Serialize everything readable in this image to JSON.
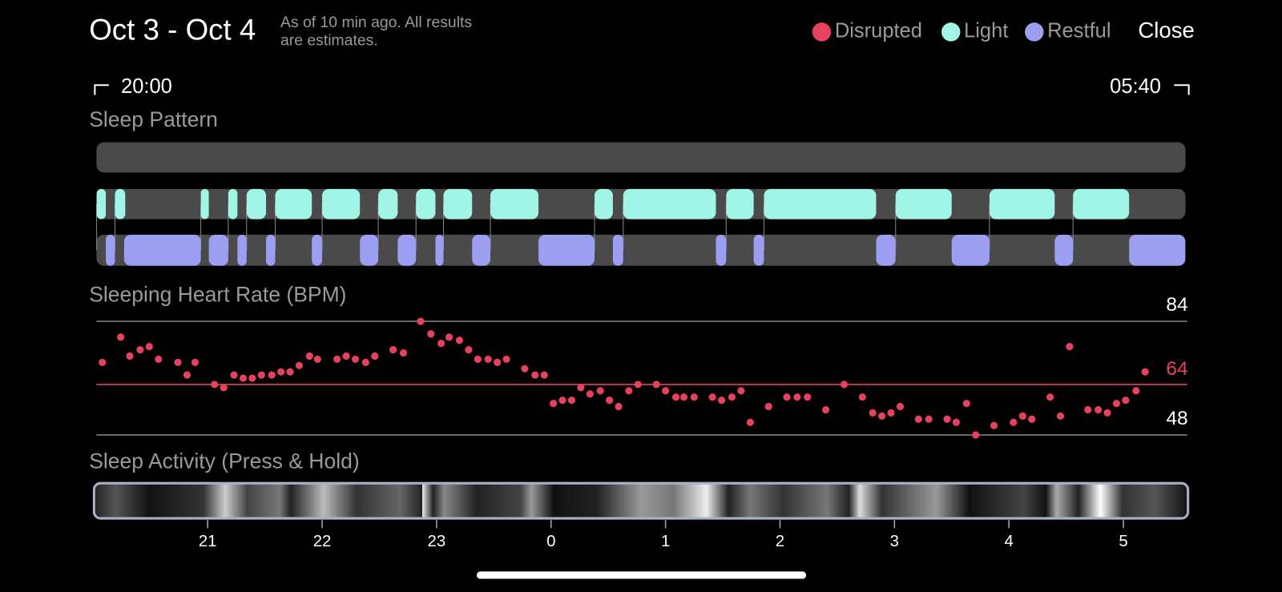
{
  "header": {
    "title": "Oct 3 - Oct 4",
    "note": [
      "As of 10 min ago. All results",
      "are estimates."
    ],
    "close": "Close"
  },
  "legend": [
    {
      "name": "Disrupted",
      "color": "#e8405f"
    },
    {
      "name": "Light",
      "color": "#a0f5e7"
    },
    {
      "name": "Restful",
      "color": "#9c9ef2"
    }
  ],
  "range": {
    "start": "20:00",
    "end": "05:40"
  },
  "xlim": [
    20,
    29.6
  ],
  "sleep_pattern": {
    "title": "Sleep Pattern",
    "light": [
      [
        20.03,
        20.11
      ],
      [
        20.19,
        20.28
      ],
      [
        20.94,
        21.01
      ],
      [
        21.18,
        21.26
      ],
      [
        21.34,
        21.51
      ],
      [
        21.59,
        21.91
      ],
      [
        22.0,
        22.33
      ],
      [
        22.49,
        22.66
      ],
      [
        22.82,
        22.99
      ],
      [
        23.06,
        23.31
      ],
      [
        23.47,
        23.89
      ],
      [
        24.38,
        24.54
      ],
      [
        24.63,
        25.44
      ],
      [
        25.53,
        25.77
      ],
      [
        25.86,
        26.84
      ],
      [
        27.01,
        27.5
      ],
      [
        27.83,
        28.4
      ],
      [
        28.56,
        29.05
      ]
    ],
    "restful": [
      [
        20.11,
        20.19
      ],
      [
        20.27,
        20.94
      ],
      [
        21.01,
        21.18
      ],
      [
        21.26,
        21.34
      ],
      [
        21.51,
        21.59
      ],
      [
        21.91,
        22.0
      ],
      [
        22.33,
        22.49
      ],
      [
        22.66,
        22.82
      ],
      [
        22.99,
        23.06
      ],
      [
        23.31,
        23.47
      ],
      [
        23.89,
        24.38
      ],
      [
        24.54,
        24.63
      ],
      [
        25.44,
        25.53
      ],
      [
        25.77,
        25.86
      ],
      [
        26.84,
        27.01
      ],
      [
        27.5,
        27.83
      ],
      [
        28.4,
        28.56
      ],
      [
        29.05,
        29.54
      ]
    ]
  },
  "heart_rate": {
    "title": "Sleeping Heart Rate (BPM)",
    "ylim": [
      48,
      84
    ],
    "yticks": [
      48,
      84
    ],
    "average": 64,
    "average_color": "#e8405f",
    "color": "#e8405f",
    "x": [
      20.08,
      20.24,
      20.32,
      20.41,
      20.49,
      20.57,
      20.74,
      20.82,
      20.89,
      21.06,
      21.14,
      21.23,
      21.31,
      21.39,
      21.47,
      21.56,
      21.64,
      21.72,
      21.8,
      21.89,
      21.96,
      22.13,
      22.21,
      22.29,
      22.38,
      22.46,
      22.62,
      22.71,
      22.86,
      22.95,
      23.04,
      23.11,
      23.2,
      23.28,
      23.36,
      23.45,
      23.53,
      23.61,
      23.77,
      23.86,
      23.94,
      24.02,
      24.1,
      24.18,
      24.26,
      24.34,
      24.43,
      24.51,
      24.59,
      24.68,
      24.76,
      24.92,
      25.0,
      25.09,
      25.16,
      25.25,
      25.41,
      25.49,
      25.58,
      25.66,
      25.74,
      25.9,
      26.06,
      26.15,
      26.24,
      26.4,
      26.56,
      26.72,
      26.81,
      26.89,
      26.97,
      27.05,
      27.21,
      27.3,
      27.46,
      27.54,
      27.63,
      27.71,
      27.87,
      28.04,
      28.12,
      28.2,
      28.36,
      28.45,
      28.53,
      28.69,
      28.78,
      28.86,
      28.94,
      29.02,
      29.11,
      29.19
    ],
    "values": [
      71,
      79,
      73,
      75,
      76,
      72,
      71,
      67,
      71,
      64,
      63,
      67,
      66,
      66,
      67,
      67,
      68,
      68,
      70,
      73,
      72,
      72,
      73,
      72,
      71,
      73,
      75,
      74,
      84,
      80,
      77,
      79,
      78,
      75,
      72,
      72,
      71,
      72,
      69,
      67,
      67,
      58,
      59,
      59,
      63,
      61,
      62,
      59,
      57,
      62,
      64,
      64,
      62,
      60,
      60,
      60,
      60,
      59,
      60,
      62,
      52,
      57,
      60,
      60,
      60,
      56,
      64,
      60,
      55,
      54,
      55,
      57,
      53,
      53,
      53,
      52,
      58,
      48,
      51,
      52,
      54,
      53,
      60,
      54,
      76,
      56,
      56,
      55,
      58,
      59,
      62,
      68
    ]
  },
  "activity": {
    "title": "Sleep Activity (Press & Hold)",
    "xticks": [
      21,
      22,
      23,
      {
        "value": 24,
        "label": "0"
      },
      {
        "value": 25,
        "label": "1"
      },
      {
        "value": 26,
        "label": "2"
      },
      {
        "value": 27,
        "label": "3"
      },
      {
        "value": 28,
        "label": "4"
      },
      {
        "value": 29,
        "label": "5"
      }
    ]
  }
}
